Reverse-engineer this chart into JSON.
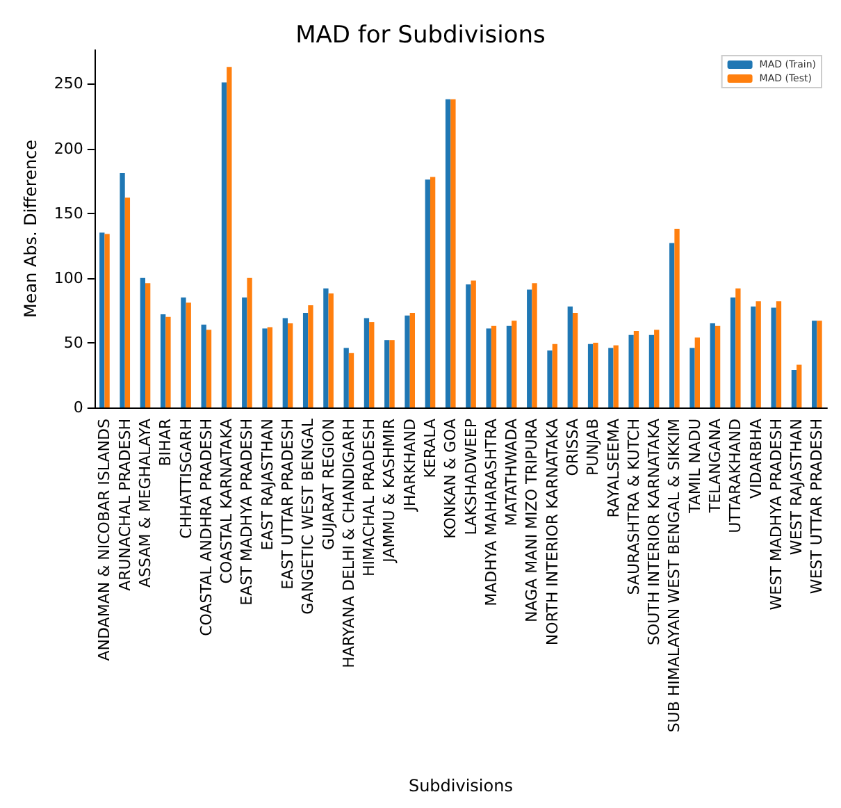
{
  "chart_data": {
    "type": "bar",
    "title": "MAD for Subdivisions",
    "xlabel": "Subdivisions",
    "ylabel": "Mean Abs. Difference",
    "categories": [
      "ANDAMAN & NICOBAR ISLANDS",
      "ARUNACHAL PRADESH",
      "ASSAM & MEGHALAYA",
      "BIHAR",
      "CHHATTISGARH",
      "COASTAL ANDHRA PRADESH",
      "COASTAL KARNATAKA",
      "EAST MADHYA PRADESH",
      "EAST RAJASTHAN",
      "EAST UTTAR PRADESH",
      "GANGETIC WEST BENGAL",
      "GUJARAT REGION",
      "HARYANA DELHI & CHANDIGARH",
      "HIMACHAL PRADESH",
      "JAMMU & KASHMIR",
      "JHARKHAND",
      "KERALA",
      "KONKAN & GOA",
      "LAKSHADWEEP",
      "MADHYA MAHARASHTRA",
      "MATATHWADA",
      "NAGA MANI MIZO TRIPURA",
      "NORTH INTERIOR KARNATAKA",
      "ORISSA",
      "PUNJAB",
      "RAYALSEEMA",
      "SAURASHTRA & KUTCH",
      "SOUTH INTERIOR KARNATAKA",
      "SUB HIMALAYAN WEST BENGAL & SIKKIM",
      "TAMIL NADU",
      "TELANGANA",
      "UTTARAKHAND",
      "VIDARBHA",
      "WEST MADHYA PRADESH",
      "WEST RAJASTHAN",
      "WEST UTTAR PRADESH"
    ],
    "series": [
      {
        "name": "MAD (Train)",
        "color": "#1f77b4",
        "values": [
          135,
          181,
          100,
          72,
          85,
          64,
          251,
          85,
          61,
          69,
          73,
          92,
          46,
          69,
          52,
          71,
          176,
          238,
          95,
          61,
          63,
          91,
          44,
          78,
          49,
          46,
          56,
          56,
          127,
          46,
          65,
          85,
          78,
          77,
          29,
          67
        ]
      },
      {
        "name": "MAD (Test)",
        "color": "#ff7f0e",
        "values": [
          134,
          162,
          96,
          70,
          81,
          60,
          263,
          100,
          62,
          65,
          79,
          88,
          42,
          66,
          52,
          73,
          178,
          238,
          98,
          63,
          67,
          96,
          49,
          73,
          50,
          48,
          59,
          60,
          138,
          54,
          63,
          92,
          82,
          82,
          33,
          67
        ]
      }
    ],
    "ylim": [
      0,
      276
    ],
    "yticks": [
      0,
      50,
      100,
      150,
      200,
      250
    ],
    "grid": false,
    "legend": "top right"
  }
}
